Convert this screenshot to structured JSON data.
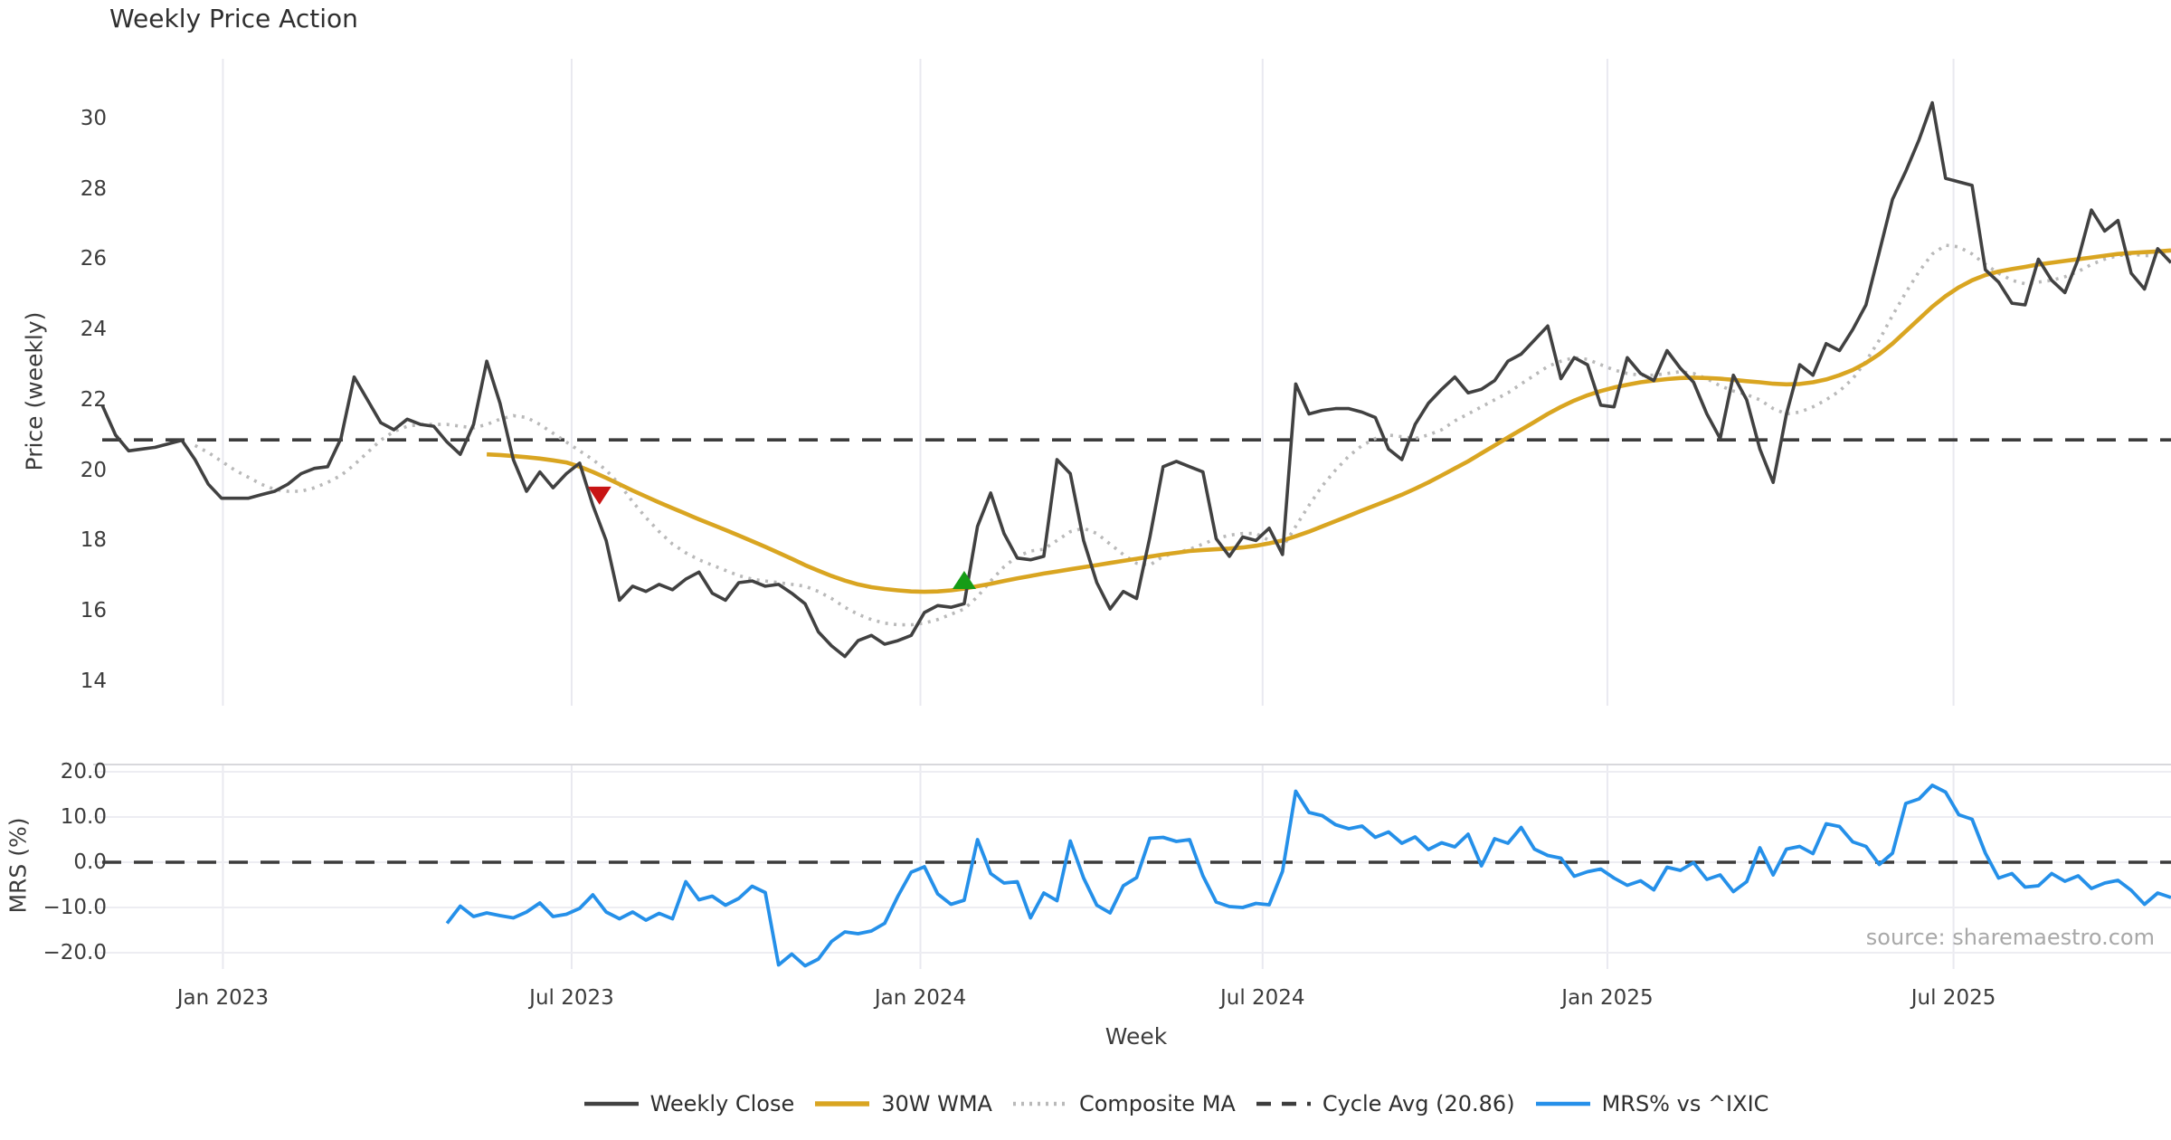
{
  "title": "Weekly Price Action",
  "source_note": "source: sharemaestro.com",
  "axes": {
    "x_label": "Week",
    "price_y_label": "Price (weekly)",
    "mrs_y_label": "MRS (%)"
  },
  "legend": [
    {
      "label": "Weekly Close",
      "color": "#414141",
      "style": "solid"
    },
    {
      "label": "30W WMA",
      "color": "#d9a521",
      "style": "solid"
    },
    {
      "label": "Composite MA",
      "color": "#b9b9b9",
      "style": "dotted"
    },
    {
      "label": "Cycle Avg (20.86)",
      "color": "#3c3c3c",
      "style": "dashed"
    },
    {
      "label": "MRS% vs ^IXIC",
      "color": "#2590e9",
      "style": "solid"
    }
  ],
  "chart_data": {
    "type": "line",
    "title": "Weekly Price Action",
    "xlabel": "Week",
    "x_total_weeks": 156,
    "x_ticks": [
      {
        "label": "Jan 2023",
        "week": 9.1
      },
      {
        "label": "Jul 2023",
        "week": 35.4
      },
      {
        "label": "Jan 2024",
        "week": 61.7
      },
      {
        "label": "Jul 2024",
        "week": 87.5
      },
      {
        "label": "Jan 2025",
        "week": 113.5
      },
      {
        "label": "Jul 2025",
        "week": 139.6
      }
    ],
    "grid": {
      "vertical": true,
      "horizontal_lower_panel": true
    },
    "panels": [
      {
        "name": "price",
        "ylabel": "Price (weekly)",
        "ylim": [
          13.3,
          31.7
        ],
        "yticks": [
          {
            "label": "30",
            "value": 30
          },
          {
            "label": "28",
            "value": 28
          },
          {
            "label": "26",
            "value": 26
          },
          {
            "label": "24",
            "value": 24
          },
          {
            "label": "22",
            "value": 22
          },
          {
            "label": "20",
            "value": 20
          },
          {
            "label": "18",
            "value": 18
          },
          {
            "label": "16",
            "value": 16
          },
          {
            "label": "14",
            "value": 14
          }
        ],
        "cycle_avg": 20.86,
        "series": [
          {
            "name": "Weekly Close",
            "color": "#414141",
            "style": "solid",
            "width": 3.6,
            "start_week": 0,
            "values": [
              21.85,
              21.0,
              20.55,
              20.6,
              20.65,
              20.75,
              20.85,
              20.3,
              19.6,
              19.2,
              19.2,
              19.2,
              19.3,
              19.4,
              19.6,
              19.9,
              20.05,
              20.1,
              20.9,
              22.65,
              22.0,
              21.35,
              21.15,
              21.45,
              21.3,
              21.25,
              20.8,
              20.45,
              21.3,
              23.1,
              21.9,
              20.3,
              19.4,
              19.95,
              19.5,
              19.9,
              20.2,
              19.0,
              18.0,
              16.3,
              16.7,
              16.55,
              16.75,
              16.6,
              16.9,
              17.1,
              16.5,
              16.3,
              16.8,
              16.85,
              16.7,
              16.75,
              16.5,
              16.2,
              15.4,
              15.0,
              14.7,
              15.15,
              15.3,
              15.05,
              15.15,
              15.3,
              15.95,
              16.15,
              16.1,
              16.2,
              18.4,
              19.35,
              18.2,
              17.5,
              17.45,
              17.55,
              20.3,
              19.9,
              18.0,
              16.8,
              16.05,
              16.55,
              16.35,
              18.1,
              20.1,
              20.25,
              20.1,
              19.95,
              18.05,
              17.55,
              18.1,
              18.0,
              18.35,
              17.6,
              22.45,
              21.6,
              21.7,
              21.75,
              21.75,
              21.65,
              21.5,
              20.6,
              20.3,
              21.3,
              21.9,
              22.3,
              22.65,
              22.2,
              22.3,
              22.55,
              23.1,
              23.3,
              23.7,
              24.1,
              22.6,
              23.2,
              23.0,
              21.85,
              21.8,
              23.2,
              22.75,
              22.55,
              23.4,
              22.9,
              22.5,
              21.6,
              20.9,
              22.7,
              22.0,
              20.6,
              19.65,
              21.6,
              23.0,
              22.7,
              23.6,
              23.4,
              24.0,
              24.7,
              26.2,
              27.7,
              28.5,
              29.4,
              30.45,
              28.3,
              28.2,
              28.1,
              25.7,
              25.35,
              24.75,
              24.7,
              26.0,
              25.4,
              25.05,
              26.0,
              27.4,
              26.8,
              27.1,
              25.6,
              25.15,
              26.3,
              25.9
            ]
          },
          {
            "name": "30W WMA",
            "color": "#d9a521",
            "style": "solid",
            "width": 4.6,
            "start_week": 29,
            "values": [
              20.45,
              20.43,
              20.4,
              20.37,
              20.33,
              20.28,
              20.22,
              20.1,
              19.95,
              19.78,
              19.6,
              19.42,
              19.25,
              19.08,
              18.92,
              18.76,
              18.6,
              18.45,
              18.3,
              18.14,
              17.98,
              17.82,
              17.65,
              17.48,
              17.3,
              17.14,
              16.99,
              16.86,
              16.75,
              16.67,
              16.62,
              16.58,
              16.55,
              16.54,
              16.55,
              16.58,
              16.63,
              16.7,
              16.77,
              16.85,
              16.92,
              16.99,
              17.06,
              17.12,
              17.18,
              17.24,
              17.3,
              17.36,
              17.42,
              17.48,
              17.54,
              17.6,
              17.65,
              17.7,
              17.73,
              17.75,
              17.77,
              17.8,
              17.85,
              17.92,
              18.0,
              18.12,
              18.25,
              18.4,
              18.55,
              18.7,
              18.85,
              19.0,
              19.15,
              19.3,
              19.47,
              19.65,
              19.85,
              20.05,
              20.25,
              20.48,
              20.7,
              20.93,
              21.15,
              21.37,
              21.6,
              21.8,
              21.98,
              22.13,
              22.25,
              22.35,
              22.43,
              22.5,
              22.55,
              22.59,
              22.62,
              22.63,
              22.62,
              22.6,
              22.57,
              22.53,
              22.5,
              22.46,
              22.44,
              22.45,
              22.5,
              22.58,
              22.7,
              22.85,
              23.05,
              23.3,
              23.6,
              23.95,
              24.3,
              24.65,
              24.95,
              25.2,
              25.4,
              25.55,
              25.65,
              25.72,
              25.78,
              25.85,
              25.9,
              25.95,
              26.0,
              26.05,
              26.1,
              26.15,
              26.18,
              26.2,
              26.22,
              26.25
            ]
          },
          {
            "name": "Composite MA",
            "color": "#b9b9b9",
            "style": "dotted",
            "width": 3.6,
            "start_week": 7,
            "values": [
              20.7,
              20.5,
              20.25,
              20.0,
              19.8,
              19.6,
              19.45,
              19.4,
              19.4,
              19.5,
              19.65,
              19.85,
              20.15,
              20.5,
              20.85,
              21.1,
              21.25,
              21.3,
              21.3,
              21.3,
              21.25,
              21.2,
              21.3,
              21.45,
              21.55,
              21.5,
              21.3,
              21.05,
              20.8,
              20.55,
              20.3,
              20.0,
              19.6,
              19.1,
              18.65,
              18.25,
              17.9,
              17.65,
              17.45,
              17.3,
              17.15,
              17.0,
              16.9,
              16.85,
              16.8,
              16.75,
              16.7,
              16.55,
              16.35,
              16.1,
              15.9,
              15.75,
              15.65,
              15.6,
              15.6,
              15.65,
              15.75,
              15.9,
              16.05,
              16.4,
              16.85,
              17.25,
              17.55,
              17.7,
              17.75,
              18.0,
              18.25,
              18.35,
              18.2,
              17.9,
              17.6,
              17.35,
              17.3,
              17.55,
              17.65,
              17.75,
              17.9,
              18.05,
              18.15,
              18.2,
              18.2,
              18.0,
              17.8,
              18.4,
              19.0,
              19.55,
              20.0,
              20.4,
              20.7,
              20.9,
              21.0,
              20.95,
              20.9,
              21.0,
              21.15,
              21.4,
              21.6,
              21.8,
              22.0,
              22.2,
              22.45,
              22.7,
              22.95,
              23.1,
              23.2,
              23.15,
              23.0,
              22.85,
              22.75,
              22.7,
              22.7,
              22.75,
              22.8,
              22.75,
              22.6,
              22.4,
              22.25,
              22.15,
              22.0,
              21.75,
              21.6,
              21.65,
              21.8,
              22.0,
              22.25,
              22.6,
              23.1,
              23.7,
              24.4,
              25.05,
              25.65,
              26.15,
              26.4,
              26.35,
              26.15,
              25.85,
              25.6,
              25.4,
              25.3,
              25.35,
              25.4,
              25.5,
              25.65,
              25.85,
              26.0,
              26.1,
              26.15,
              26.1,
              26.1,
              26.2
            ]
          }
        ],
        "markers": [
          {
            "type": "sell-signal",
            "shape": "triangle-down",
            "color": "#c81414",
            "week": 37.5,
            "value": 19.3
          },
          {
            "type": "buy-signal",
            "shape": "triangle-up",
            "color": "#169c16",
            "week": 65.0,
            "value": 16.85
          }
        ]
      },
      {
        "name": "mrs",
        "ylabel": "MRS (%)",
        "ylim": [
          -23.6,
          21.6
        ],
        "yticks": [
          {
            "label": "20.0",
            "value": 20
          },
          {
            "label": "10.0",
            "value": 10
          },
          {
            "label": "0.0",
            "value": 0
          },
          {
            "label": "−10.0",
            "value": -10
          },
          {
            "label": "−20.0",
            "value": -20
          }
        ],
        "zero_dash_line": 0,
        "series": [
          {
            "name": "MRS% vs ^IXIC",
            "color": "#2590e9",
            "style": "solid",
            "width": 3.8,
            "start_week": 26,
            "values": [
              -13.5,
              -9.7,
              -12.0,
              -11.2,
              -11.8,
              -12.3,
              -11.0,
              -9.0,
              -12.0,
              -11.5,
              -10.2,
              -7.2,
              -11.0,
              -12.5,
              -11.0,
              -12.8,
              -11.3,
              -12.5,
              -4.3,
              -8.3,
              -7.5,
              -9.5,
              -8.0,
              -5.3,
              -6.7,
              -22.7,
              -20.3,
              -22.9,
              -21.4,
              -17.5,
              -15.4,
              -15.8,
              -15.2,
              -13.5,
              -7.5,
              -2.2,
              -1.0,
              -7.0,
              -9.3,
              -8.4,
              5.0,
              -2.5,
              -4.6,
              -4.3,
              -12.3,
              -6.8,
              -8.5,
              4.7,
              -3.5,
              -9.5,
              -11.2,
              -5.2,
              -3.4,
              5.3,
              5.5,
              4.6,
              5.0,
              -3.0,
              -8.8,
              -9.8,
              -10.0,
              -9.1,
              -9.4,
              -2.0,
              15.7,
              11.0,
              10.3,
              8.3,
              7.4,
              8.0,
              5.5,
              6.7,
              4.2,
              5.6,
              2.8,
              4.3,
              3.4,
              6.2,
              -0.8,
              5.2,
              4.2,
              7.7,
              2.9,
              1.5,
              0.9,
              -3.1,
              -2.1,
              -1.5,
              -3.5,
              -5.1,
              -4.1,
              -6.1,
              -1.1,
              -1.8,
              -0.1,
              -3.8,
              -2.8,
              -6.5,
              -4.3,
              3.2,
              -2.8,
              2.9,
              3.5,
              1.9,
              8.5,
              7.9,
              4.5,
              3.5,
              -0.5,
              2.0,
              13.0,
              14.0,
              17.0,
              15.5,
              10.5,
              9.5,
              2.0,
              -3.5,
              -2.5,
              -5.5,
              -5.2,
              -2.5,
              -4.2,
              -3.0,
              -5.8,
              -4.6,
              -4.0,
              -6.2,
              -9.3,
              -6.8,
              -7.8
            ]
          }
        ]
      }
    ],
    "legend_position": "bottom-center",
    "colors": {
      "grid_vertical": "#e9e9f0",
      "grid_horizontal": "#ededf2",
      "panel_top_spine": "#d8d8dc",
      "cycle_avg_dash": "#3c3c3c"
    }
  }
}
